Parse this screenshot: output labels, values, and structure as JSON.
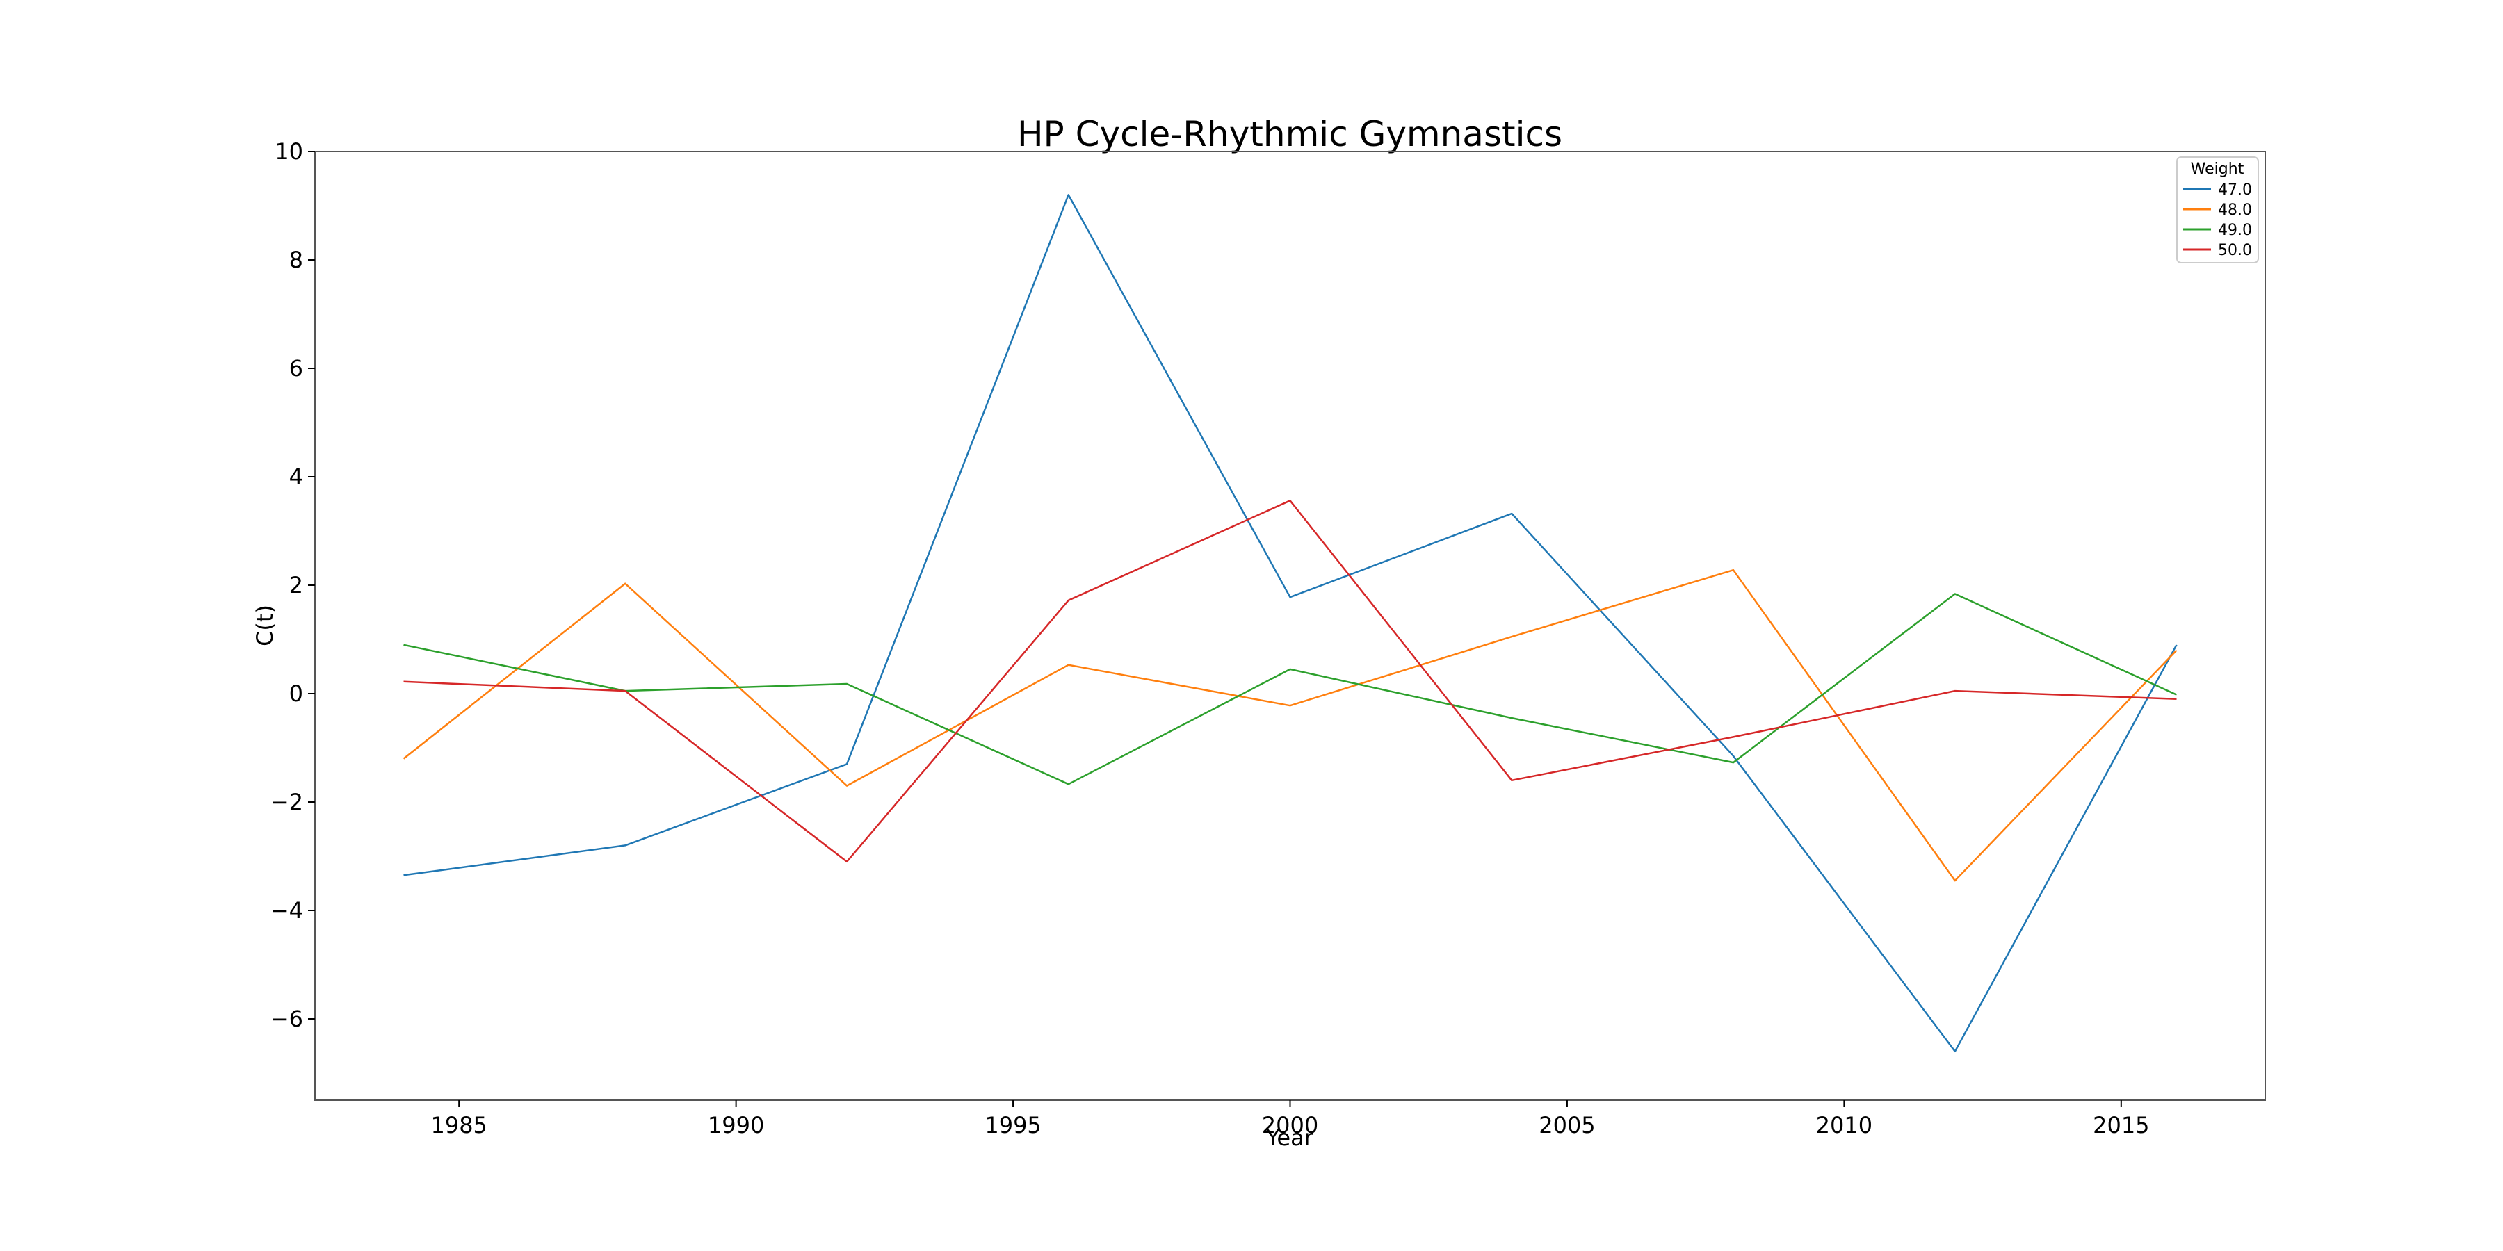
{
  "chart_data": {
    "type": "line",
    "title": "HP Cycle-Rhythmic Gymnastics",
    "xlabel": "Year",
    "ylabel": "C(t)",
    "x": [
      1984,
      1988,
      1992,
      1996,
      2000,
      2004,
      2008,
      2012,
      2016
    ],
    "xlim": [
      1982.4,
      2017.6
    ],
    "ylim": [
      -7.5,
      10.0
    ],
    "xticks": [
      1985,
      1990,
      1995,
      2000,
      2005,
      2010,
      2015
    ],
    "yticks": [
      -6,
      -4,
      -2,
      0,
      2,
      4,
      6,
      8,
      10
    ],
    "ytick_labels": [
      "−6",
      "−4",
      "−2",
      "0",
      "2",
      "4",
      "6",
      "8",
      "10"
    ],
    "grid": false,
    "legend": {
      "title": "Weight",
      "placement": "top-right"
    },
    "series": [
      {
        "name": "47.0",
        "color": "#1f77b4",
        "values": [
          -3.35,
          -2.8,
          -1.3,
          9.2,
          1.78,
          3.32,
          -1.15,
          -6.6,
          0.9
        ]
      },
      {
        "name": "48.0",
        "color": "#ff7f0e",
        "values": [
          -1.2,
          2.03,
          -1.7,
          0.53,
          -0.22,
          1.05,
          2.28,
          -3.45,
          0.8
        ]
      },
      {
        "name": "49.0",
        "color": "#2ca02c",
        "values": [
          0.9,
          0.05,
          0.18,
          -1.67,
          0.45,
          -0.45,
          -1.27,
          1.84,
          -0.02
        ]
      },
      {
        "name": "50.0",
        "color": "#d62728",
        "values": [
          0.22,
          0.05,
          -3.1,
          1.72,
          3.56,
          -1.6,
          -0.8,
          0.05,
          -0.1
        ]
      }
    ]
  }
}
